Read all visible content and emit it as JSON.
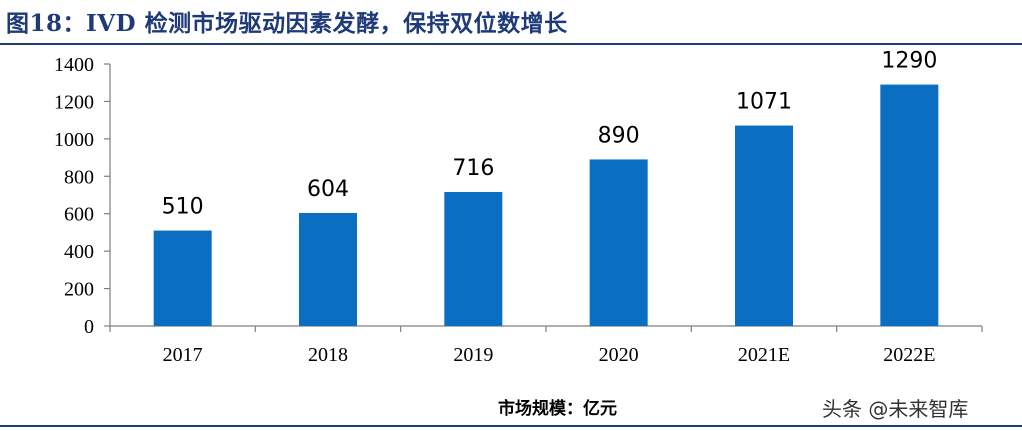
{
  "title": "图18：IVD 检测市场驱动因素发酵，保持双位数增长",
  "unit_label": "市场规模：亿元",
  "watermark": "头条 @未来智库",
  "colors": {
    "bar": "#0a6fc2",
    "title": "#1f3a78",
    "axis": "#7f7f7f"
  },
  "chart_data": {
    "type": "bar",
    "title": "",
    "xlabel": "",
    "ylabel": "",
    "categories": [
      "2017",
      "2018",
      "2019",
      "2020",
      "2021E",
      "2022E"
    ],
    "values": [
      510,
      604,
      716,
      890,
      1071,
      1290
    ],
    "ylim": [
      0,
      1400
    ],
    "yticks": [
      0,
      200,
      400,
      600,
      800,
      1000,
      1200,
      1400
    ],
    "grid": false,
    "legend": "none",
    "data_labels": true
  }
}
